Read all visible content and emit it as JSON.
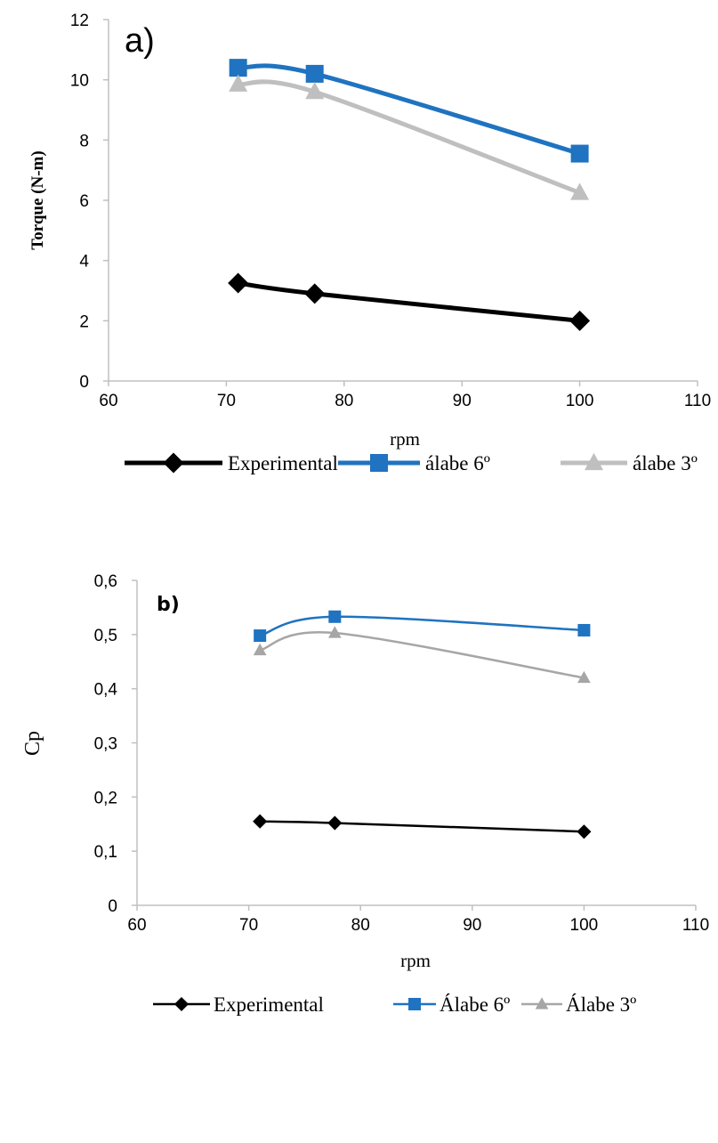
{
  "chart_data": [
    {
      "type": "line",
      "panel_label": "a)",
      "xlabel": "rpm",
      "ylabel": "Torque (N-m)",
      "xlim": [
        60,
        110
      ],
      "ylim": [
        0,
        12
      ],
      "x_ticks": [
        "60",
        "70",
        "80",
        "90",
        "100",
        "110"
      ],
      "y_ticks": [
        "0",
        "2",
        "4",
        "6",
        "8",
        "10",
        "12"
      ],
      "x_tick_values": [
        60,
        70,
        80,
        90,
        100,
        110
      ],
      "y_tick_values": [
        0,
        2,
        4,
        6,
        8,
        10,
        12
      ],
      "grid": false,
      "legend_position": "bottom",
      "smooth": true,
      "series": [
        {
          "name": "Experimental",
          "x": [
            71,
            77.5,
            100
          ],
          "y": [
            3.25,
            2.9,
            2.0
          ],
          "color": "#000000",
          "marker": "diamond",
          "line_width": 5,
          "marker_size": 10
        },
        {
          "name": "álabe 6º",
          "x": [
            71,
            77.5,
            100
          ],
          "y": [
            10.4,
            10.2,
            7.55
          ],
          "color": "#1F73C0",
          "marker": "square",
          "line_width": 5,
          "marker_size": 10
        },
        {
          "name": "álabe 3º",
          "x": [
            71,
            77.5,
            100
          ],
          "y": [
            9.85,
            9.6,
            6.25
          ],
          "color": "#BFBFBF",
          "marker": "triangle",
          "line_width": 5,
          "marker_size": 10
        }
      ]
    },
    {
      "type": "line",
      "panel_label": "b)",
      "xlabel": "rpm",
      "ylabel": "Cp",
      "xlim": [
        60,
        110
      ],
      "ylim": [
        0,
        0.6
      ],
      "x_ticks": [
        "60",
        "70",
        "80",
        "90",
        "100",
        "110"
      ],
      "y_ticks": [
        "0",
        "0,1",
        "0,2",
        "0,3",
        "0,4",
        "0,5",
        "0,6"
      ],
      "x_tick_values": [
        60,
        70,
        80,
        90,
        100,
        110
      ],
      "y_tick_values": [
        0,
        0.1,
        0.2,
        0.3,
        0.4,
        0.5,
        0.6
      ],
      "grid": false,
      "legend_position": "bottom",
      "smooth": true,
      "series": [
        {
          "name": "Experimental",
          "x": [
            71,
            77.7,
            100
          ],
          "y": [
            0.155,
            0.152,
            0.136
          ],
          "color": "#000000",
          "marker": "diamond",
          "line_width": 2.5,
          "marker_size": 7
        },
        {
          "name": "Álabe 6º",
          "x": [
            71,
            77.7,
            100
          ],
          "y": [
            0.498,
            0.533,
            0.508
          ],
          "color": "#1F73C0",
          "marker": "square",
          "line_width": 2.5,
          "marker_size": 7
        },
        {
          "name": "Álabe 3º",
          "x": [
            71,
            77.7,
            100
          ],
          "y": [
            0.471,
            0.503,
            0.42
          ],
          "color": "#A6A6A6",
          "marker": "triangle",
          "line_width": 2.5,
          "marker_size": 7
        }
      ]
    }
  ]
}
